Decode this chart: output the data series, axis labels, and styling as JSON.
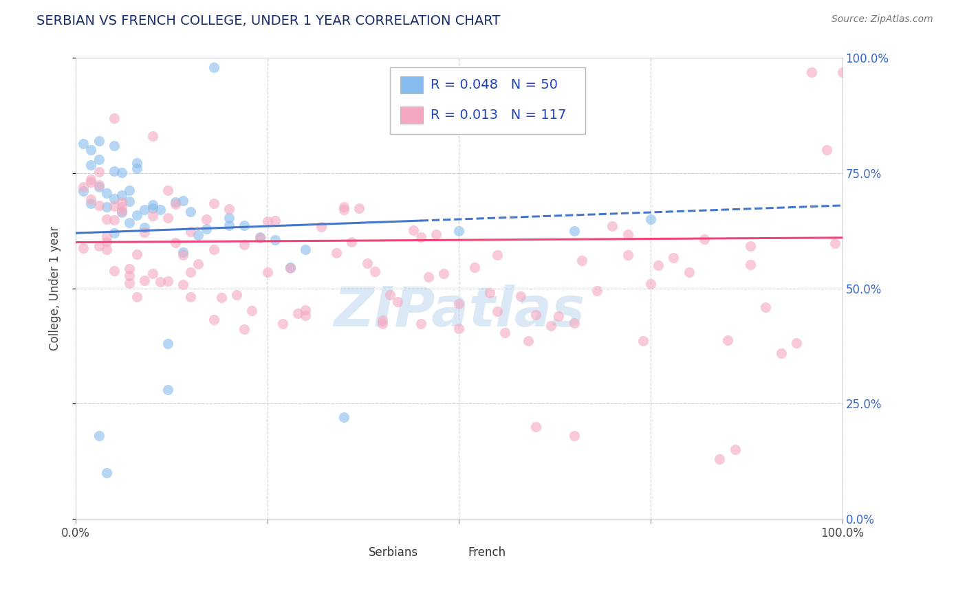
{
  "title": "SERBIAN VS FRENCH COLLEGE, UNDER 1 YEAR CORRELATION CHART",
  "source_text": "Source: ZipAtlas.com",
  "ylabel": "College, Under 1 year",
  "title_color": "#1a2f6e",
  "title_fontsize": 14,
  "serbian_color": "#88bbee",
  "french_color": "#f4a8c0",
  "legend_R_serbian": "0.048",
  "legend_N_serbian": "50",
  "legend_R_french": "0.013",
  "legend_N_french": "117",
  "legend_color": "#2244bb",
  "watermark": "ZIPatlas",
  "serbian_trend_color": "#4477cc",
  "french_trend_color": "#ee4477",
  "right_axis_color": "#3366cc",
  "grid_color": "#cccccc",
  "serbian_seed": 123,
  "french_seed": 456
}
